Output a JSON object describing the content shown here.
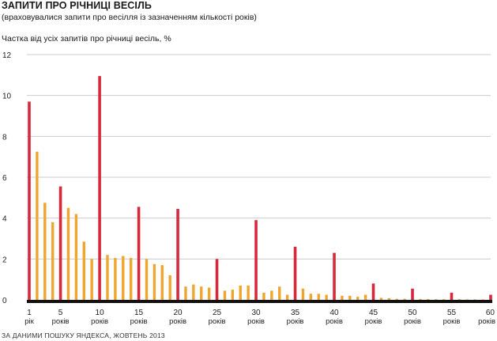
{
  "title": "ЗАПИТИ ПРО РІЧНИЦІ ВЕСІЛЬ",
  "subtitle": "(враховувалися запити про весілля із зазначенням кількості років)",
  "source": "ЗА ДАНИМИ ПОШУКУ ЯНДЕКСА, ЖОВТЕНЬ 2013",
  "colors": {
    "highlight": "#d62a3c",
    "normal": "#f0a62e",
    "grid": "#cccccc",
    "baseline": "#111111"
  },
  "chart_data": {
    "type": "bar",
    "title": "ЗАПИТИ ПРО РІЧНИЦІ ВЕСІЛЬ",
    "ylabel": "Частка від усіх запитів про річниці весіль, %",
    "xlabel": "",
    "ylim": [
      0,
      12
    ],
    "yticks": [
      "0",
      "2",
      "4",
      "6",
      "8",
      "10",
      "12"
    ],
    "grid": true,
    "highlight_rule": "every 5 years (and year 1) shown in red",
    "x": [
      1,
      2,
      3,
      4,
      5,
      6,
      7,
      8,
      9,
      10,
      11,
      12,
      13,
      14,
      15,
      16,
      17,
      18,
      19,
      20,
      21,
      22,
      23,
      24,
      25,
      26,
      27,
      28,
      29,
      30,
      31,
      32,
      33,
      34,
      35,
      36,
      37,
      38,
      39,
      40,
      41,
      42,
      43,
      44,
      45,
      46,
      47,
      48,
      49,
      50,
      51,
      52,
      53,
      54,
      55,
      56,
      57,
      58,
      59,
      60
    ],
    "values": [
      9.7,
      7.25,
      4.75,
      3.8,
      5.55,
      4.5,
      4.2,
      2.85,
      2.0,
      10.95,
      2.2,
      2.05,
      2.15,
      2.05,
      4.55,
      2.0,
      1.75,
      1.7,
      1.2,
      4.45,
      0.65,
      0.75,
      0.65,
      0.6,
      2.0,
      0.45,
      0.5,
      0.7,
      0.7,
      3.9,
      0.35,
      0.45,
      0.65,
      0.25,
      2.6,
      0.55,
      0.3,
      0.3,
      0.25,
      2.3,
      0.2,
      0.2,
      0.15,
      0.25,
      0.8,
      0.1,
      0.08,
      0.05,
      0.05,
      0.55,
      0.04,
      0.04,
      0.03,
      0.03,
      0.35,
      0.03,
      0.02,
      0.02,
      0.02,
      0.25
    ],
    "highlight": [
      1,
      5,
      10,
      15,
      20,
      25,
      30,
      35,
      40,
      45,
      50,
      55,
      60
    ],
    "xticks": [
      {
        "x": 1,
        "num": "1",
        "unit": "рік"
      },
      {
        "x": 5,
        "num": "5",
        "unit": "років"
      },
      {
        "x": 10,
        "num": "10",
        "unit": "років"
      },
      {
        "x": 15,
        "num": "15",
        "unit": "років"
      },
      {
        "x": 20,
        "num": "20",
        "unit": "років"
      },
      {
        "x": 25,
        "num": "25",
        "unit": "років"
      },
      {
        "x": 30,
        "num": "30",
        "unit": "років"
      },
      {
        "x": 35,
        "num": "35",
        "unit": "років"
      },
      {
        "x": 40,
        "num": "40",
        "unit": "років"
      },
      {
        "x": 45,
        "num": "45",
        "unit": "років"
      },
      {
        "x": 50,
        "num": "50",
        "unit": "років"
      },
      {
        "x": 55,
        "num": "55",
        "unit": "років"
      },
      {
        "x": 60,
        "num": "60",
        "unit": "років"
      }
    ]
  }
}
